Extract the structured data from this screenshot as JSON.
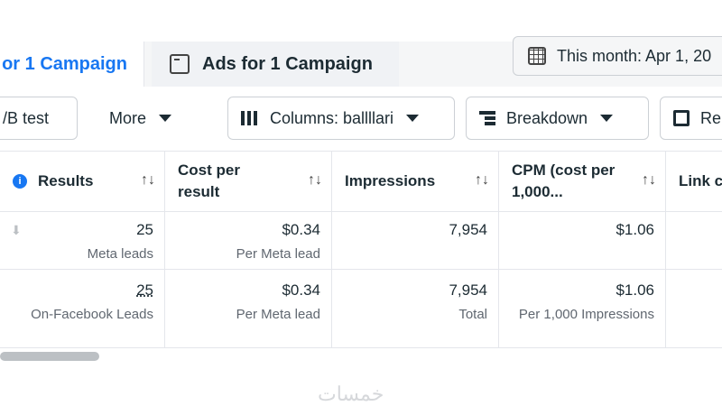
{
  "tabs": [
    {
      "label": "or 1 Campaign",
      "active": true
    },
    {
      "label": "Ads for 1 Campaign",
      "icon": "ad-icon"
    }
  ],
  "date_range": {
    "label": "This month: Apr 1, 20",
    "icon": "calendar-icon"
  },
  "toolbar": {
    "ab_test": "/B test",
    "more": "More",
    "columns": "Columns: ballllari",
    "breakdown": "Breakdown",
    "reports": "Re"
  },
  "table": {
    "headers": [
      {
        "label": "Results",
        "info": true
      },
      {
        "label": "Cost per result"
      },
      {
        "label": "Impressions"
      },
      {
        "label": "CPM (cost per 1,000..."
      },
      {
        "label": "Link c"
      }
    ],
    "rows": [
      {
        "results": "25",
        "results_sub": "Meta leads",
        "cost": "$0.34",
        "cost_sub": "Per Meta lead",
        "impressions": "7,954",
        "impressions_sub": "",
        "cpm": "$1.06",
        "cpm_sub": ""
      },
      {
        "results": "25",
        "results_sub": "On-Facebook Leads",
        "cost": "$0.34",
        "cost_sub": "Per Meta lead",
        "impressions": "7,954",
        "impressions_sub": "Total",
        "cpm": "$1.06",
        "cpm_sub": "Per 1,000 Impressions"
      }
    ]
  },
  "watermark": "خمسات",
  "colors": {
    "accent": "#1877f2",
    "border": "#e4e6eb"
  }
}
